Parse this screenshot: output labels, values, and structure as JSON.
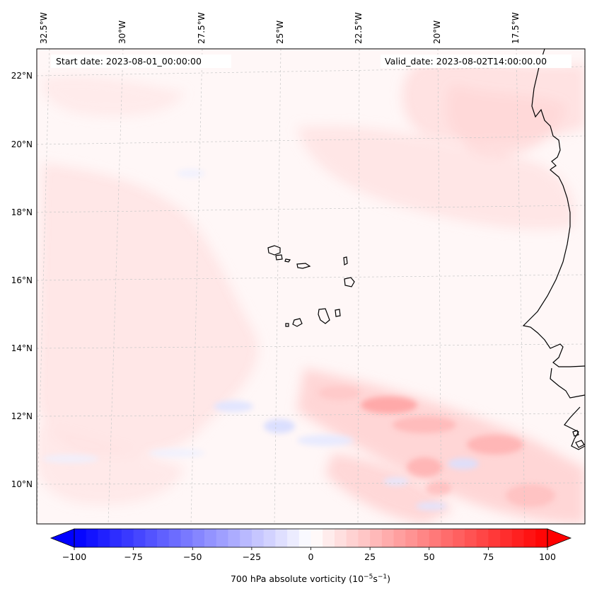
{
  "map": {
    "lon_ticks": [
      "32.5°W",
      "30°W",
      "27.5°W",
      "25°W",
      "22.5°W",
      "20°W",
      "17.5°W"
    ],
    "lat_ticks": [
      "22°N",
      "20°N",
      "18°N",
      "16°N",
      "14°N",
      "12°N",
      "10°N"
    ],
    "start_date": "Start date: 2023-08-01_00:00:00",
    "valid_date": "Valid_date: 2023-08-02T14:00:00.00"
  },
  "colorbar": {
    "title": "700 hPa absolute vorticity (10",
    "title_sup1": "−5",
    "title_mid": "s",
    "title_sup2": "−1",
    "title_end": ")",
    "min": -100,
    "max": 100,
    "step": 5,
    "tick_values": [
      -100,
      -75,
      -50,
      -25,
      0,
      25,
      50,
      75,
      100
    ],
    "tick_labels": [
      "−100",
      "−75",
      "−50",
      "−25",
      "0",
      "25",
      "50",
      "75",
      "100"
    ],
    "low_color": "#0000ff",
    "mid_color": "#ffffff",
    "high_color": "#ff0000"
  },
  "colors": {
    "coastline": "#000000",
    "grid": "#c8c8c8",
    "frame": "#000000"
  }
}
